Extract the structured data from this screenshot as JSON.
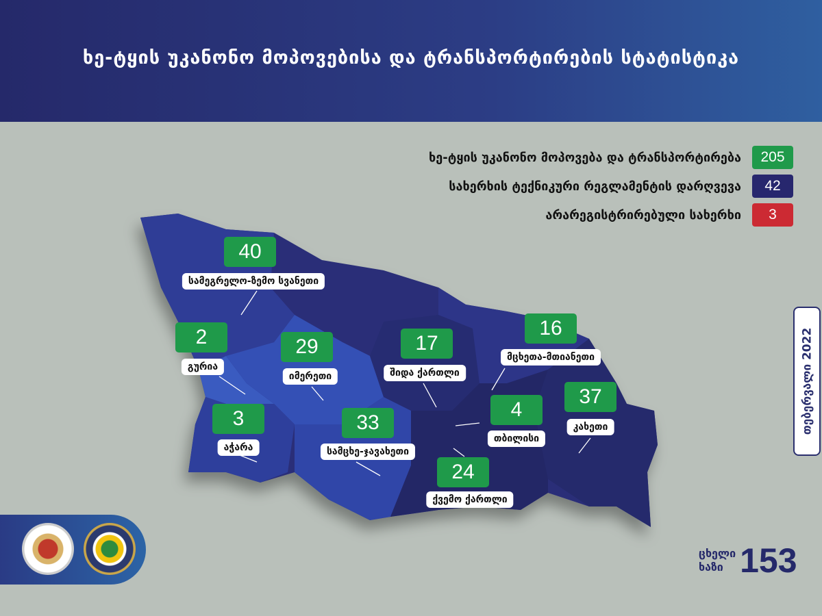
{
  "header": {
    "title": "ხე-ტყის უკანონო მოპოვებისა და ტრანსპორტირების სტატისტიკა"
  },
  "legend": [
    {
      "label": "ხე-ტყის უკანონო მოპოვება და ტრანსპორტირება",
      "value": "205",
      "color": "#1f9a4a"
    },
    {
      "label": "სახერხის ტექნიკური რეგლამენტის დარღვევა",
      "value": "42",
      "color": "#27276e"
    },
    {
      "label": "არარეგისტრირებული სახერხი",
      "value": "3",
      "color": "#cc2a33"
    }
  ],
  "period": "თებერვალი 2022",
  "regions": [
    {
      "name": "სამეგრელო-ზემო სვანეთი",
      "value": "40"
    },
    {
      "name": "გურია",
      "value": "2"
    },
    {
      "name": "იმერეთი",
      "value": "29"
    },
    {
      "name": "შიდა ქართლი",
      "value": "17"
    },
    {
      "name": "მცხეთა-მთიანეთი",
      "value": "16"
    },
    {
      "name": "აჭარა",
      "value": "3"
    },
    {
      "name": "სამცხე-ჯავახეთი",
      "value": "33"
    },
    {
      "name": "თბილისი",
      "value": "4"
    },
    {
      "name": "კახეთი",
      "value": "37"
    },
    {
      "name": "ქვემო ქართლი",
      "value": "24"
    }
  ],
  "hotline": {
    "label_line1": "ცხელი",
    "label_line2": "ხაზი",
    "number": "153"
  },
  "logos": [
    "ministry-seal",
    "agency-seal"
  ]
}
